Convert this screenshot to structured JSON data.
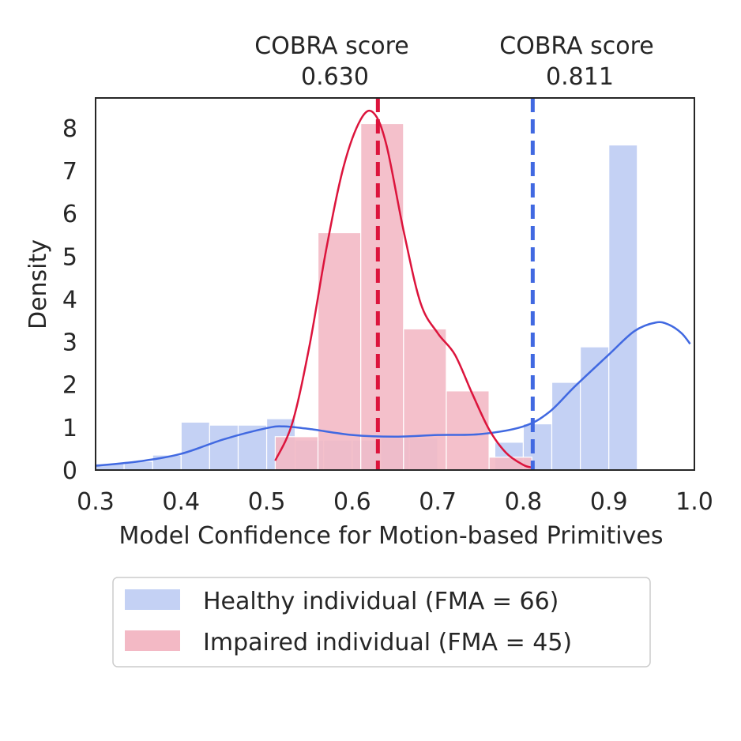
{
  "chart_data": {
    "type": "histogram",
    "xlabel": "Model Confidence for Motion-based Primitives",
    "ylabel": "Density",
    "xlim": [
      0.3,
      1.0
    ],
    "ylim": [
      0,
      8.7
    ],
    "xticks": [
      "0.3",
      "0.4",
      "0.5",
      "0.6",
      "0.7",
      "0.8",
      "0.9",
      "1.0"
    ],
    "yticks": [
      "0",
      "1",
      "2",
      "3",
      "4",
      "5",
      "6",
      "7",
      "8"
    ],
    "grid": false,
    "legend_position": "below",
    "series": [
      {
        "name": "Healthy individual (FMA = 66)",
        "color": "#4169e1",
        "hist_color": "#c4d1f4",
        "bin_edges": [
          0.3,
          0.3333,
          0.3667,
          0.4,
          0.4333,
          0.4667,
          0.5,
          0.5333,
          0.5667,
          0.6,
          0.6333,
          0.6667,
          0.7,
          0.7333,
          0.7667,
          0.8,
          0.8333,
          0.8667,
          0.9,
          0.9333,
          0.9667,
          1.0
        ],
        "bins": [
          0.15,
          0.2,
          0.35,
          1.12,
          1.05,
          1.05,
          1.2,
          0.7,
          0.7,
          0.7,
          0.75,
          0.75,
          0.0,
          0.0,
          0.65,
          1.08,
          2.05,
          2.88,
          7.6,
          0.0,
          0.0
        ],
        "kde_x": [
          0.3,
          0.35,
          0.4,
          0.45,
          0.5,
          0.52,
          0.55,
          0.6,
          0.65,
          0.7,
          0.75,
          0.8,
          0.83,
          0.86,
          0.9,
          0.93,
          0.955,
          0.97,
          0.985,
          0.995
        ],
        "kde_y": [
          0.1,
          0.2,
          0.38,
          0.72,
          0.98,
          1.02,
          0.96,
          0.82,
          0.78,
          0.82,
          0.84,
          1.02,
          1.35,
          1.95,
          2.7,
          3.25,
          3.45,
          3.4,
          3.2,
          2.95
        ],
        "cobra_label": "COBRA score",
        "cobra_score": "0.811",
        "cobra_value": 0.811
      },
      {
        "name": "Impaired individual (FMA = 45)",
        "color": "#dc143c",
        "hist_color": "#f3b9c5",
        "bin_edges": [
          0.51,
          0.56,
          0.61,
          0.66,
          0.71,
          0.76,
          0.81
        ],
        "bins": [
          0.78,
          5.55,
          8.1,
          3.3,
          1.85,
          0.3
        ],
        "kde_x": [
          0.51,
          0.53,
          0.55,
          0.57,
          0.59,
          0.61,
          0.625,
          0.64,
          0.66,
          0.68,
          0.7,
          0.72,
          0.74,
          0.76,
          0.78,
          0.8,
          0.81
        ],
        "kde_y": [
          0.22,
          1.1,
          2.9,
          5.2,
          7.1,
          8.2,
          8.35,
          7.6,
          5.6,
          3.9,
          3.2,
          2.7,
          1.8,
          0.95,
          0.4,
          0.12,
          0.06
        ],
        "cobra_label": "COBRA score",
        "cobra_score": "0.630",
        "cobra_value": 0.63
      }
    ]
  }
}
